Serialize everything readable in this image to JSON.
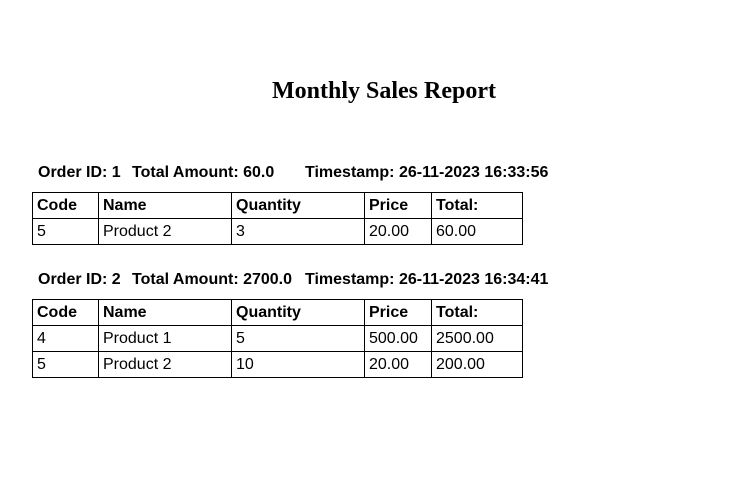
{
  "report": {
    "title": "Monthly Sales Report"
  },
  "columns": {
    "code": "Code",
    "name": "Name",
    "quantity": "Quantity",
    "price": "Price",
    "total": "Total:"
  },
  "orders": [
    {
      "id_label": "Order ID: 1",
      "total_label": "Total Amount: 60.0",
      "timestamp_label": "Timestamp: 26-11-2023 16:33:56",
      "rows": [
        {
          "code": "5",
          "name": "Product 2",
          "quantity": "3",
          "price": "20.00",
          "total": "60.00"
        }
      ]
    },
    {
      "id_label": "Order ID: 2",
      "total_label": "Total Amount: 2700.0",
      "timestamp_label": "Timestamp: 26-11-2023 16:34:41",
      "rows": [
        {
          "code": "4",
          "name": "Product 1",
          "quantity": "5",
          "price": "500.00",
          "total": "2500.00"
        },
        {
          "code": "5",
          "name": "Product 2",
          "quantity": "10",
          "price": "20.00",
          "total": "200.00"
        }
      ]
    }
  ]
}
